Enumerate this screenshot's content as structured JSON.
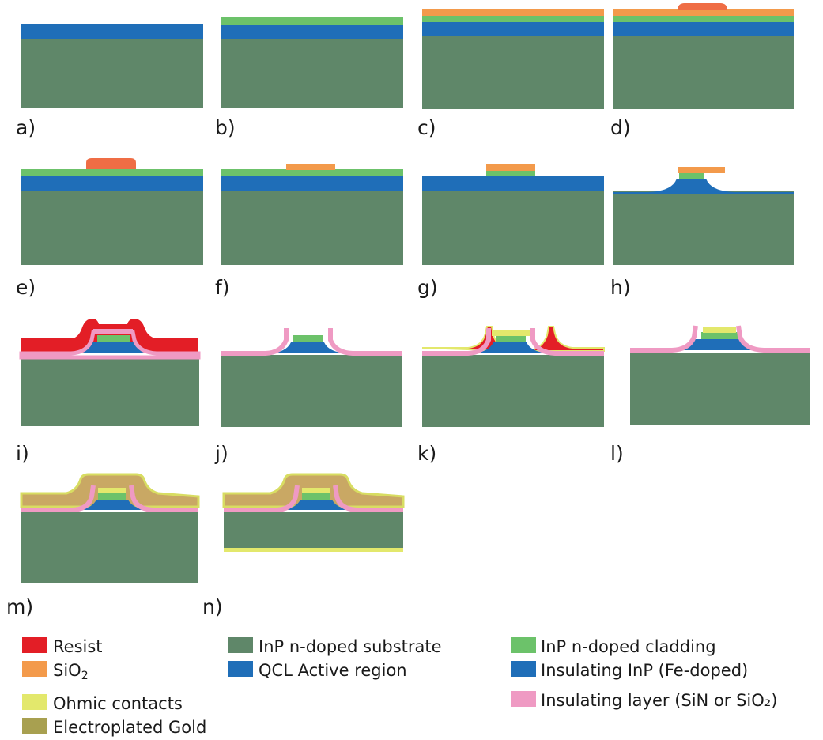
{
  "colors": {
    "substrate": "#5f8769",
    "active": "#1f6eb8",
    "cladding": "#6cc26a",
    "sio2": "#f39a4b",
    "resist": "#e31e26",
    "resist_orange": "#ef6d45",
    "pink": "#ef9ac3",
    "ohmic": "#e3e86c",
    "gold": "#c9a864",
    "gold_edge": "#d8dd62"
  },
  "steps": [
    {
      "label": "a)"
    },
    {
      "label": "b)"
    },
    {
      "label": "c)"
    },
    {
      "label": "d)"
    },
    {
      "label": "e)"
    },
    {
      "label": "f)"
    },
    {
      "label": "g)"
    },
    {
      "label": "h)"
    },
    {
      "label": "i)"
    },
    {
      "label": "j)"
    },
    {
      "label": "k)"
    },
    {
      "label": "l)"
    },
    {
      "label": "m)"
    },
    {
      "label": "n)"
    }
  ],
  "legend": {
    "resist": {
      "text": "Resist",
      "color": "#e31e26"
    },
    "sio2": {
      "text": "SiO",
      "sub": "2",
      "color": "#f39a4b"
    },
    "ohmic": {
      "text": "Ohmic contacts",
      "color": "#e3e86c"
    },
    "gold": {
      "text": "Electroplated Gold",
      "color": "#a8a050"
    },
    "substrate": {
      "text": "InP n-doped substrate",
      "color": "#5f8769"
    },
    "active": {
      "text": "QCL Active region",
      "color": "#1f6eb8"
    },
    "cladding": {
      "text": "InP n-doped cladding",
      "color": "#6cc26a"
    },
    "fe_inp": {
      "text": "Insulating InP (Fe-doped)",
      "color": "#1f6eb8"
    },
    "insulating": {
      "text": "Insulating layer (SiN or SiO₂)",
      "color": "#ef9ac3"
    }
  }
}
